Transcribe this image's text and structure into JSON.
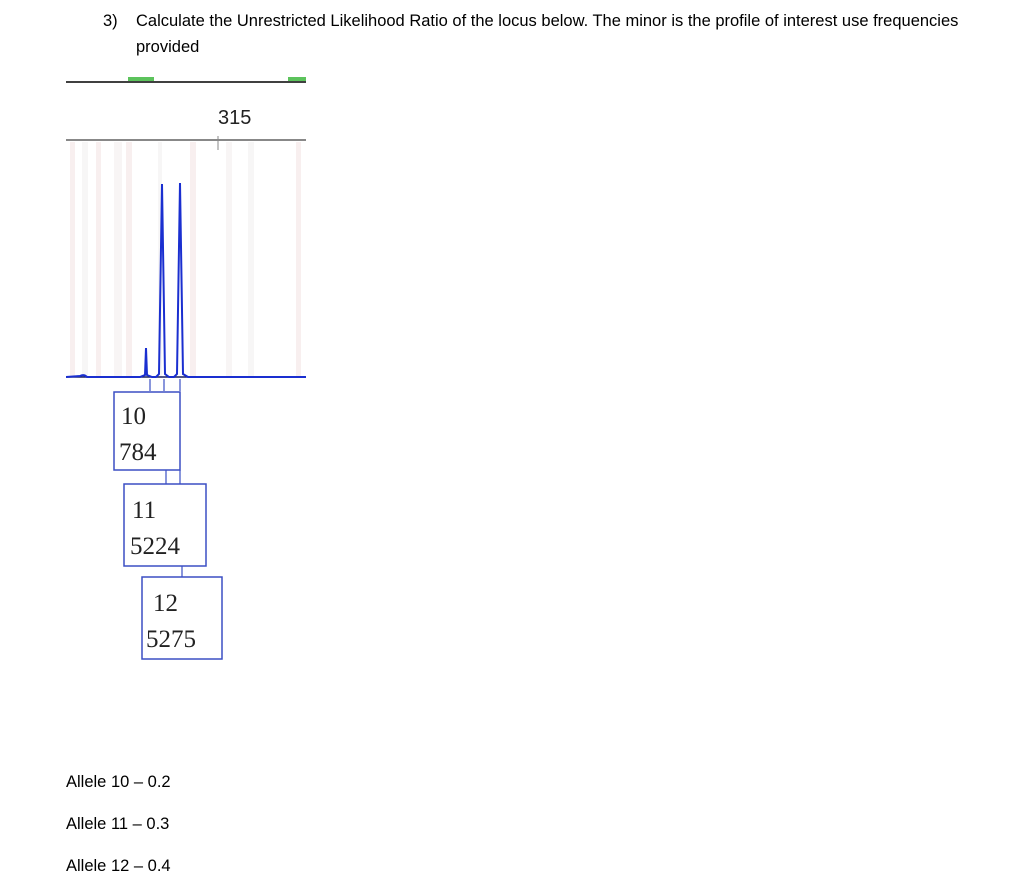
{
  "question": {
    "number": "3)",
    "text": "Calculate the Unrestricted Likelihood Ratio of the locus below. The minor is the profile of interest use frequencies provided"
  },
  "electropherogram": {
    "size_marker": "315",
    "trace_color": "#1a2fd0",
    "box_border_color": "#3b4fc4",
    "peaks": [
      {
        "allele": "10",
        "height": "784"
      },
      {
        "allele": "11",
        "height": "5224"
      },
      {
        "allele": "12",
        "height": "5275"
      }
    ]
  },
  "frequencies": [
    {
      "label": "Allele 10 – 0.2"
    },
    {
      "label": "Allele 11 – 0.3"
    },
    {
      "label": "Allele 12 – 0.4"
    }
  ]
}
